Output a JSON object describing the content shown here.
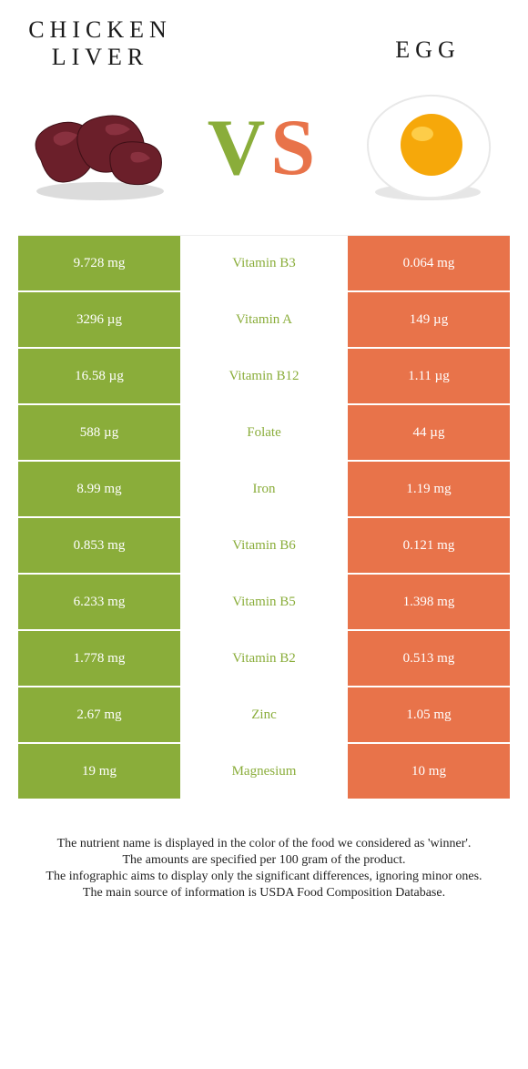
{
  "left_food": {
    "name": "CHICKEN\nLIVER",
    "title_fontsize": 26,
    "color": "#8aad3a"
  },
  "right_food": {
    "name": "EGG",
    "title_fontsize": 26,
    "color": "#e8734a"
  },
  "vs": {
    "v_color": "#8aad3a",
    "s_color": "#e8734a"
  },
  "table": {
    "left_bg": "#8aad3a",
    "right_bg": "#e8734a",
    "mid_bg": "#ffffff",
    "cell_text_color": "#ffffff",
    "row_border_color": "#ffffff",
    "nutrient_fontsize": 15,
    "rows": [
      {
        "left": "9.728 mg",
        "nutrient": "Vitamin B3",
        "right": "0.064 mg",
        "winner": "left"
      },
      {
        "left": "3296 µg",
        "nutrient": "Vitamin A",
        "right": "149 µg",
        "winner": "left"
      },
      {
        "left": "16.58 µg",
        "nutrient": "Vitamin B12",
        "right": "1.11 µg",
        "winner": "left"
      },
      {
        "left": "588 µg",
        "nutrient": "Folate",
        "right": "44 µg",
        "winner": "left"
      },
      {
        "left": "8.99 mg",
        "nutrient": "Iron",
        "right": "1.19 mg",
        "winner": "left"
      },
      {
        "left": "0.853 mg",
        "nutrient": "Vitamin B6",
        "right": "0.121 mg",
        "winner": "left"
      },
      {
        "left": "6.233 mg",
        "nutrient": "Vitamin B5",
        "right": "1.398 mg",
        "winner": "left"
      },
      {
        "left": "1.778 mg",
        "nutrient": "Vitamin B2",
        "right": "0.513 mg",
        "winner": "left"
      },
      {
        "left": "2.67 mg",
        "nutrient": "Zinc",
        "right": "1.05 mg",
        "winner": "left"
      },
      {
        "left": "19 mg",
        "nutrient": "Magnesium",
        "right": "10 mg",
        "winner": "left"
      }
    ]
  },
  "footer": {
    "fontsize": 14,
    "lines": [
      "The nutrient name is displayed in the color of the food we considered as 'winner'.",
      "The amounts are specified per 100 gram of the product.",
      "The infographic aims to display only the significant differences, ignoring minor ones.",
      "The main source of information is USDA Food Composition Database."
    ]
  },
  "liver_svg": {
    "body_fill": "#6b1f2a",
    "body_stroke": "#3e0f16",
    "highlight": "#a24050",
    "shadow": "#dcdcdc"
  },
  "egg_svg": {
    "white_fill": "#ffffff",
    "white_stroke": "#e8e8e8",
    "yolk_fill": "#f6a80a",
    "yolk_highlight": "#ffd659",
    "shadow": "#e6e6e6"
  }
}
